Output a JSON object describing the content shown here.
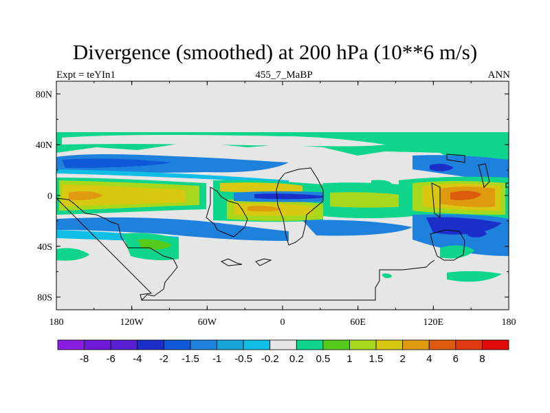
{
  "title": "Divergence (smoothed) at 200 hPa (10**6 m/s)",
  "subtitle_left": "Expt = teYIn1",
  "subtitle_center": "455_7_MaBP",
  "subtitle_right": "ANN",
  "chart_data": {
    "type": "contour_map",
    "title": "Divergence (smoothed) at 200 hPa (10**6 m/s)",
    "variable": "Divergence (smoothed)",
    "level": "200 hPa",
    "units": "10**6 m/s",
    "experiment": "teYIn1",
    "period": "455_7_MaBP",
    "season": "ANN",
    "xlim": [
      -180,
      180
    ],
    "ylim": [
      -90,
      90
    ],
    "x_ticks": [
      {
        "value": -180,
        "label": "180"
      },
      {
        "value": -120,
        "label": "120W"
      },
      {
        "value": -60,
        "label": "60W"
      },
      {
        "value": 0,
        "label": "0"
      },
      {
        "value": 60,
        "label": "60E"
      },
      {
        "value": 120,
        "label": "120E"
      },
      {
        "value": 180,
        "label": "180"
      }
    ],
    "y_ticks": [
      {
        "value": 80,
        "label": "80N"
      },
      {
        "value": 40,
        "label": "40N"
      },
      {
        "value": 0,
        "label": "0"
      },
      {
        "value": -40,
        "label": "40S"
      },
      {
        "value": -80,
        "label": "80S"
      }
    ],
    "contour_levels": [
      "-8",
      "-6",
      "-4",
      "-2",
      "-1.5",
      "-1",
      "-0.5",
      "-0.2",
      "0.2",
      "0.5",
      "1",
      "1.5",
      "2",
      "4",
      "6",
      "8"
    ],
    "colors": [
      "#8a1ee0",
      "#6e18d8",
      "#5820d0",
      "#1c2ec8",
      "#0f58d8",
      "#1e82dc",
      "#17a3d8",
      "#10bde4",
      "#e6e6e6",
      "#0fd48c",
      "#55cc1c",
      "#a8d81c",
      "#d8c812",
      "#e09a10",
      "#dc5a0e",
      "#e03a12",
      "#e00a0a"
    ],
    "features": [
      {
        "kind": "band",
        "note": "Northern mid-latitude band ~25-50N, positive (green) with negative (blue) core near 30N"
      },
      {
        "kind": "band",
        "note": "Tropical band ~10N-20S, strongly positive (yellow/orange) over Pacific, Atlantic and western Pacific"
      },
      {
        "kind": "band",
        "note": "Equatorial negative (blue) cores over Atlantic/Africa and central Pacific"
      },
      {
        "kind": "band",
        "note": "Southern subtropics ~15-40S mostly negative (blue) over oceans"
      },
      {
        "kind": "max",
        "lon": 147,
        "lat": 0,
        "note": "Orange maximum (2-4) over Maritime Continent"
      },
      {
        "kind": "region",
        "note": "Light grey (-0.2 to 0.2) poleward of ~50N and ~45S"
      }
    ]
  }
}
